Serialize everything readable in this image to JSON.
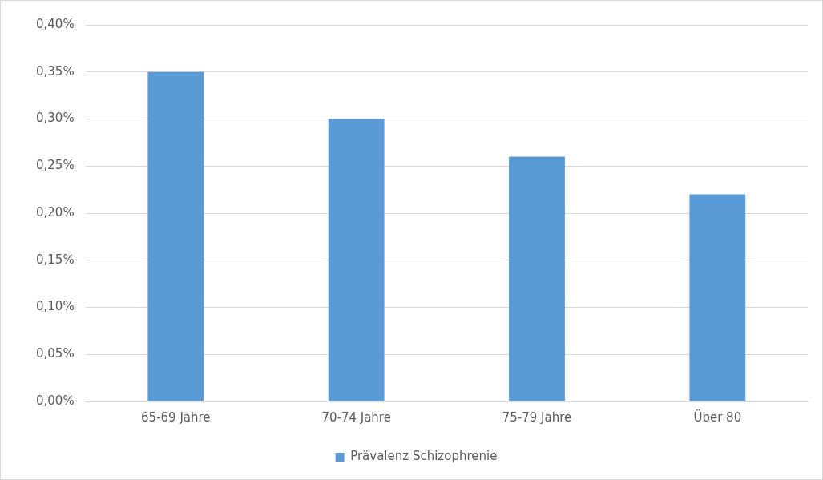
{
  "chart_data": {
    "type": "bar",
    "categories": [
      "65-69 Jahre",
      "70-74 Jahre",
      "75-79 Jahre",
      "Über 80"
    ],
    "series": [
      {
        "name": "Prävalenz Schizophrenie",
        "color": "#5b9bd5",
        "values": [
          0.35,
          0.3,
          0.26,
          0.22
        ]
      }
    ],
    "ylim": [
      0,
      0.4
    ],
    "yticks": [
      {
        "value": 0,
        "label": "0,00%"
      },
      {
        "value": 0.05,
        "label": "0,05%"
      },
      {
        "value": 0.1,
        "label": "0,10%"
      },
      {
        "value": 0.15,
        "label": "0,15%"
      },
      {
        "value": 0.2,
        "label": "0,20%"
      },
      {
        "value": 0.25,
        "label": "0,25%"
      },
      {
        "value": 0.3,
        "label": "0,30%"
      },
      {
        "value": 0.35,
        "label": "0,35%"
      },
      {
        "value": 0.4,
        "label": "0,40%"
      }
    ],
    "grid": "y",
    "legend": "bottom"
  }
}
